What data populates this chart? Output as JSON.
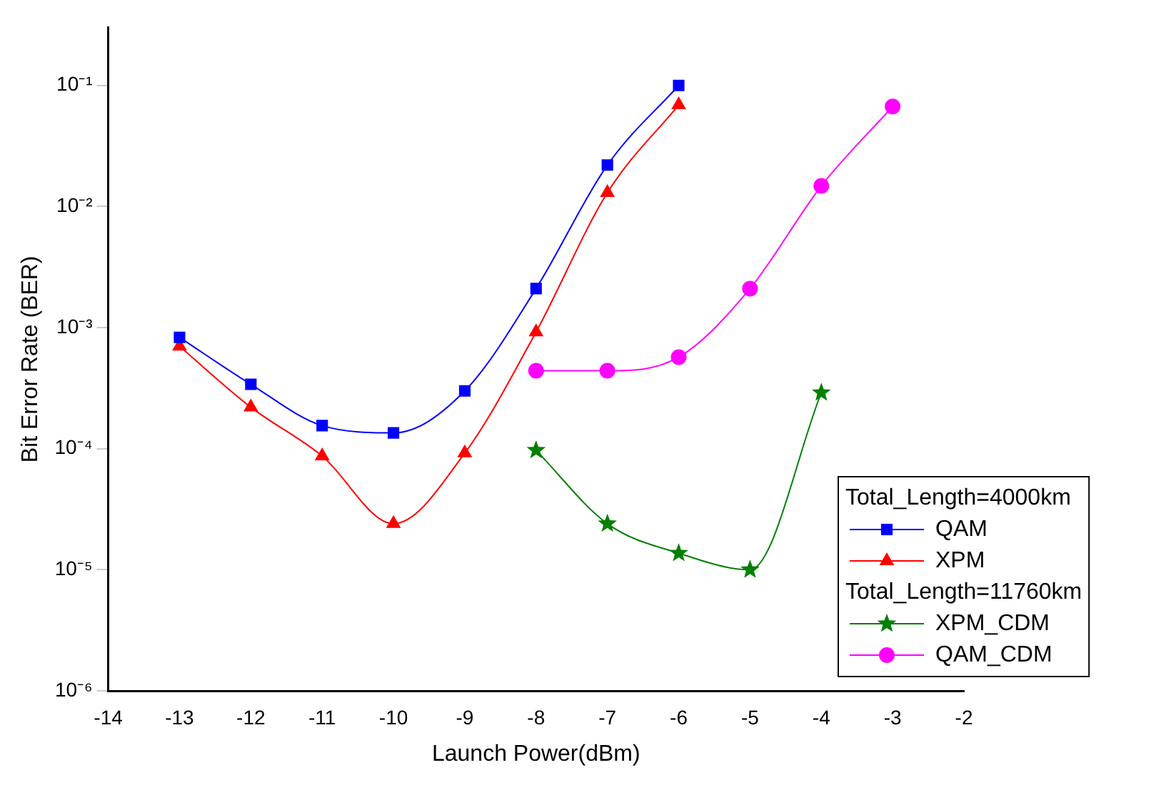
{
  "chart_data": {
    "type": "line",
    "xlabel": "Launch Power(dBm)",
    "ylabel": "Bit Error Rate (BER)",
    "log": "y",
    "grid": false,
    "legend": "bottom right",
    "legend_title": "Total_Length=4000km",
    "annotations": [
      "Total_Length=11760km"
    ],
    "xlim": [
      -14,
      -2
    ],
    "xticks": [
      -14,
      -13,
      -12,
      -11,
      -10,
      -9,
      -8,
      -7,
      -6,
      -5,
      -4,
      -3,
      -2
    ],
    "ylim": [
      1e-06,
      0.3
    ],
    "yticks": [
      {
        "value": 1e-06,
        "label": "10⁻⁶"
      },
      {
        "value": 1e-05,
        "label": "10⁻⁵"
      },
      {
        "value": 0.0001,
        "label": "10⁻⁴"
      },
      {
        "value": 0.001,
        "label": "10⁻³"
      },
      {
        "value": 0.01,
        "label": "10⁻²"
      },
      {
        "value": 0.1,
        "label": "10⁻¹"
      }
    ],
    "series": [
      {
        "name": "QAM",
        "color": "#0000ff",
        "marker": "square",
        "x": [
          -13,
          -12,
          -11,
          -10,
          -9,
          -8,
          -7,
          -6
        ],
        "values": [
          0.00083,
          0.00034,
          0.000155,
          0.000135,
          0.0003,
          0.0021,
          0.022,
          0.1
        ]
      },
      {
        "name": "XPM",
        "color": "#ff0000",
        "marker": "triangle",
        "x": [
          -13,
          -12,
          -11,
          -10,
          -9,
          -8,
          -7,
          -6
        ],
        "values": [
          0.0007,
          0.00022,
          8.7e-05,
          2.4e-05,
          9.2e-05,
          0.00092,
          0.013,
          0.069
        ]
      },
      {
        "name": "XPM_CDM",
        "color": "#008000",
        "marker": "star",
        "x": [
          -8,
          -7,
          -6,
          -5,
          -4
        ],
        "values": [
          9.7e-05,
          2.4e-05,
          1.37e-05,
          1e-05,
          0.00029
        ]
      },
      {
        "name": "QAM_CDM",
        "color": "#ff00ff",
        "marker": "circle",
        "x": [
          -8,
          -7,
          -6,
          -5,
          -4,
          -3
        ],
        "values": [
          0.00044,
          0.00044,
          0.00057,
          0.0021,
          0.0148,
          0.067
        ]
      }
    ]
  }
}
